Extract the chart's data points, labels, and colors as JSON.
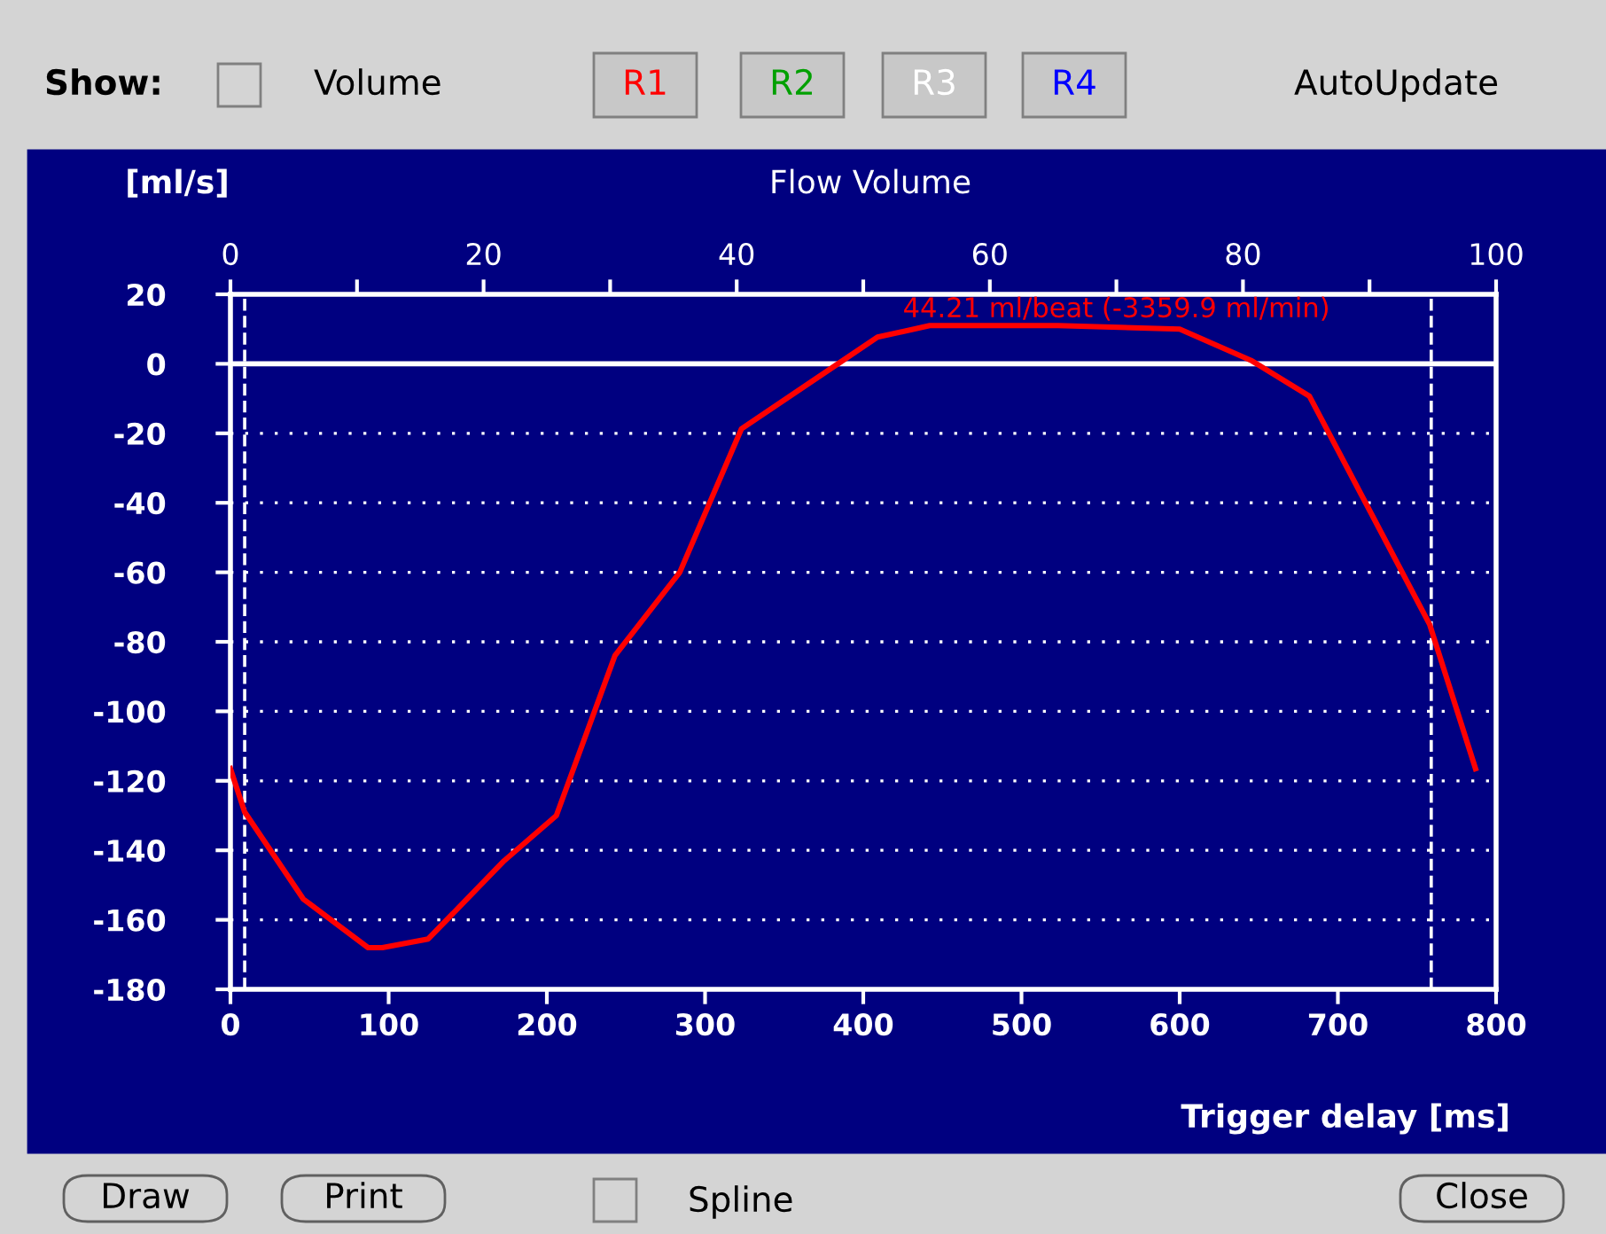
{
  "chart_data": {
    "type": "line",
    "title": "Flow Volume",
    "xlabel": "Trigger delay [ms]",
    "ylabel": "[ml/s]",
    "x": [
      0,
      9,
      46,
      87,
      96,
      125,
      173,
      206,
      243,
      284,
      323,
      384,
      409,
      442,
      523,
      600,
      645,
      682,
      758,
      787
    ],
    "series": [
      {
        "color": "#ff0000",
        "values": [
          -116.5,
          -129,
          -154,
          -168,
          -168,
          -165.5,
          -143,
          -130,
          -84,
          -60,
          -18.7,
          0,
          7.7,
          11,
          11,
          10,
          1,
          -9.3,
          -75,
          -116.5
        ]
      }
    ],
    "xlim": [
      0,
      800
    ],
    "xticks": [
      0,
      100,
      200,
      300,
      400,
      500,
      600,
      700,
      800
    ],
    "ylim": [
      -180,
      20
    ],
    "yticks": [
      -180,
      -160,
      -140,
      -120,
      -100,
      -80,
      -60,
      -40,
      -20,
      0,
      20
    ],
    "x2lim": [
      0,
      100
    ],
    "x2ticks": [
      0,
      {
        "value": 10,
        "label": null
      },
      20,
      {
        "value": 30,
        "label": null
      },
      40,
      {
        "value": 50,
        "label": null
      },
      60,
      {
        "value": 70,
        "label": null
      },
      80,
      {
        "value": 90,
        "label": null
      },
      100
    ],
    "grid": "y",
    "marker": "none",
    "line_style": "solid",
    "ref_lines": [
      {
        "axis": "y",
        "value": 0,
        "color": "#ffffff",
        "line_style": "solid"
      },
      {
        "axis": "x",
        "value": 9,
        "color": "#ffffff",
        "line_style": "dashed"
      },
      {
        "axis": "x",
        "value": 759,
        "color": "#ffffff",
        "line_style": "dashed"
      }
    ],
    "annotations": [
      {
        "text": "44.21 ml/beat (-3359.9 ml/min)",
        "x": 560,
        "y": 11.8
      },
      "Show:",
      "Volume",
      "R1",
      "R2",
      "R3",
      "R4",
      "AutoUpdate",
      "Draw",
      "Print",
      "Spline",
      "Close"
    ]
  }
}
